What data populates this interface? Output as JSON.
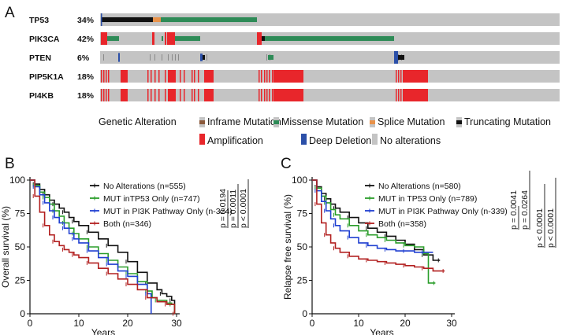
{
  "panels": {
    "a": "A",
    "b": "B",
    "c": "C"
  },
  "oncoprint": {
    "genes": [
      {
        "name": "TP53",
        "pct": "34%"
      },
      {
        "name": "PIK3CA",
        "pct": "42%"
      },
      {
        "name": "PTEN",
        "pct": "6%"
      },
      {
        "name": "PIP5K1A",
        "pct": "18%"
      },
      {
        "name": "PI4KB",
        "pct": "18%"
      }
    ],
    "legend": {
      "title": "Genetic Alteration",
      "items": [
        {
          "label": "Inframe Mutation",
          "color": "#8b5a3c"
        },
        {
          "label": "Missense Mutation",
          "color": "#2e8b57"
        },
        {
          "label": "Splice Mutation",
          "color": "#e8924a"
        },
        {
          "label": "Truncating Mutation",
          "color": "#111111"
        },
        {
          "label": "Amplification",
          "color": "#e8262b"
        },
        {
          "label": "Deep Deletion",
          "color": "#2b4fa8"
        },
        {
          "label": "No alterations",
          "color": "#c4c4c4"
        }
      ]
    },
    "colors": {
      "background": "#c4c4c4",
      "amp": "#e8262b",
      "missense": "#2e8b57",
      "truncating": "#111111",
      "splice": "#e8924a",
      "deletion": "#2b4fa8"
    }
  },
  "chart_data": [
    {
      "type": "line",
      "panel": "B",
      "xlabel": "Years",
      "ylabel": "Overall survival (%)",
      "xlim": [
        0,
        30
      ],
      "ylim": [
        0,
        100
      ],
      "xticks": [
        0,
        10,
        20,
        30
      ],
      "yticks": [
        0,
        25,
        50,
        75,
        100
      ],
      "series": [
        {
          "name": "No Alterations (n=555)",
          "color": "#111111",
          "x": [
            0,
            1,
            2,
            3,
            4,
            5,
            6,
            7,
            8,
            9,
            10,
            12,
            14,
            16,
            18,
            20,
            22,
            24,
            26,
            27,
            28,
            29,
            29.6
          ],
          "y": [
            100,
            97,
            93,
            89,
            85,
            82,
            79,
            76,
            72,
            69,
            66,
            61,
            56,
            51,
            46,
            39,
            31,
            23,
            18,
            15,
            13,
            10,
            0
          ]
        },
        {
          "name": "MUT inTP53 Only (n=747)",
          "color": "#2a9d2a",
          "x": [
            0,
            1,
            2,
            3,
            4,
            5,
            6,
            7,
            8,
            9,
            10,
            12,
            14,
            16,
            18,
            20,
            22,
            24,
            25,
            26,
            28,
            29,
            29.6
          ],
          "y": [
            100,
            96,
            91,
            87,
            82,
            77,
            73,
            68,
            64,
            60,
            56,
            50,
            45,
            40,
            35,
            30,
            24,
            17,
            12,
            10,
            8,
            7,
            0
          ]
        },
        {
          "name": "MUT in PI3K Pathway Only (n-324)",
          "color": "#1f3fd1",
          "x": [
            0,
            1,
            2,
            3,
            4,
            5,
            6,
            7,
            8,
            9,
            10,
            12,
            14,
            16,
            18,
            20,
            22,
            24,
            24.8
          ],
          "y": [
            100,
            95,
            89,
            83,
            77,
            72,
            68,
            64,
            60,
            56,
            53,
            47,
            42,
            37,
            32,
            28,
            22,
            15,
            0
          ]
        },
        {
          "name": "Both (n=346)",
          "color": "#b22020",
          "x": [
            0,
            1,
            2,
            3,
            4,
            5,
            6,
            7,
            8,
            9,
            10,
            12,
            14,
            16,
            18,
            20,
            22,
            24,
            26,
            28,
            29,
            29.6
          ],
          "y": [
            100,
            88,
            76,
            66,
            59,
            54,
            51,
            48,
            46,
            44,
            42,
            38,
            34,
            30,
            26,
            22,
            18,
            12,
            9,
            7,
            7,
            0
          ]
        }
      ],
      "pvalues": [
        "p = 0.0194",
        "p = 0.0011",
        "p < 0.0001"
      ]
    },
    {
      "type": "line",
      "panel": "C",
      "xlabel": "Years",
      "ylabel": "Relapse free survival (%)",
      "xlim": [
        0,
        30
      ],
      "ylim": [
        0,
        100
      ],
      "xticks": [
        0,
        10,
        20,
        30
      ],
      "yticks": [
        0,
        25,
        50,
        75,
        100
      ],
      "series": [
        {
          "name": "No Alterations (n=580)",
          "color": "#111111",
          "x": [
            0,
            1,
            2,
            3,
            4,
            5,
            6,
            8,
            10,
            12,
            14,
            16,
            18,
            20,
            22,
            24,
            26,
            27.5
          ],
          "y": [
            100,
            95,
            90,
            86,
            82,
            79,
            76,
            72,
            68,
            64,
            61,
            58,
            55,
            52,
            48,
            44,
            40,
            40
          ]
        },
        {
          "name": "MUT in TP53 Only (n=789)",
          "color": "#2a9d2a",
          "x": [
            0,
            1,
            2,
            3,
            4,
            5,
            6,
            8,
            10,
            12,
            14,
            16,
            18,
            20,
            22,
            24,
            25,
            26.5
          ],
          "y": [
            100,
            94,
            88,
            83,
            78,
            74,
            71,
            66,
            62,
            59,
            57,
            55,
            53,
            51,
            50,
            45,
            23,
            23
          ]
        },
        {
          "name": "MUT in PI3K Pathway Only (n-339)",
          "color": "#1f3fd1",
          "x": [
            0,
            1,
            2,
            3,
            4,
            5,
            6,
            8,
            10,
            12,
            14,
            16,
            18,
            20,
            22,
            24,
            26
          ],
          "y": [
            100,
            92,
            84,
            77,
            71,
            66,
            62,
            57,
            53,
            51,
            49,
            48,
            47,
            47,
            46,
            46,
            46
          ]
        },
        {
          "name": "Both (n=358)",
          "color": "#b22020",
          "x": [
            0,
            1,
            2,
            3,
            4,
            5,
            6,
            8,
            10,
            12,
            14,
            16,
            18,
            20,
            22,
            24,
            26,
            28.5
          ],
          "y": [
            100,
            82,
            68,
            59,
            53,
            49,
            46,
            43,
            41,
            40,
            39,
            38,
            37,
            36,
            35,
            34,
            32,
            32
          ]
        }
      ],
      "pvalues": [
        "p = 0.0041",
        "p = 0.0264",
        "p < 0.0001",
        "p < 0.0001"
      ]
    }
  ]
}
